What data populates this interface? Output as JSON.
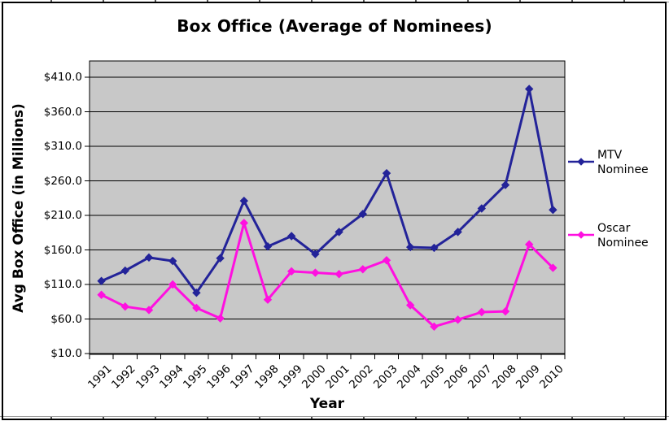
{
  "title": "Box Office (Average of Nominees)",
  "chart_data": {
    "type": "line",
    "title": "Box Office (Average of Nominees)",
    "xlabel": "Year",
    "ylabel": "Avg Box Office (in Millions)",
    "x": [
      "1991",
      "1992",
      "1993",
      "1994",
      "1995",
      "1996",
      "1997",
      "1998",
      "1999",
      "2000",
      "2001",
      "2002",
      "2003",
      "2004",
      "2005",
      "2006",
      "2007",
      "2008",
      "2009",
      "2010"
    ],
    "series": [
      {
        "name": "MTV Nominee",
        "color": "#232399",
        "marker": "diamond",
        "values": [
          115,
          130,
          149,
          144,
          98,
          148,
          231,
          165,
          180,
          154,
          186,
          212,
          271,
          164,
          163,
          186,
          220,
          254,
          393,
          218
        ]
      },
      {
        "name": "Oscar Nominee",
        "color": "#FF10E0",
        "marker": "diamond",
        "values": [
          95,
          78,
          73,
          110,
          76,
          61,
          199,
          88,
          129,
          127,
          125,
          132,
          145,
          80,
          49,
          59,
          70,
          71,
          168,
          134
        ]
      }
    ],
    "ylim": [
      10,
      410
    ],
    "yticks": {
      "values": [
        410,
        360,
        310,
        260,
        210,
        160,
        110,
        60,
        10
      ],
      "labels": [
        "$410.0",
        "$360.0",
        "$310.0",
        "$260.0",
        "$210.0",
        "$160.0",
        "$110.0",
        "$60.0",
        "$10.0"
      ]
    },
    "grid": true,
    "legend_position": "right",
    "colors": {
      "plot_bg": "#C8C8C8",
      "grid": "#000000",
      "axis": "#000000",
      "text": "#000000",
      "chart_border": "#000000"
    }
  }
}
